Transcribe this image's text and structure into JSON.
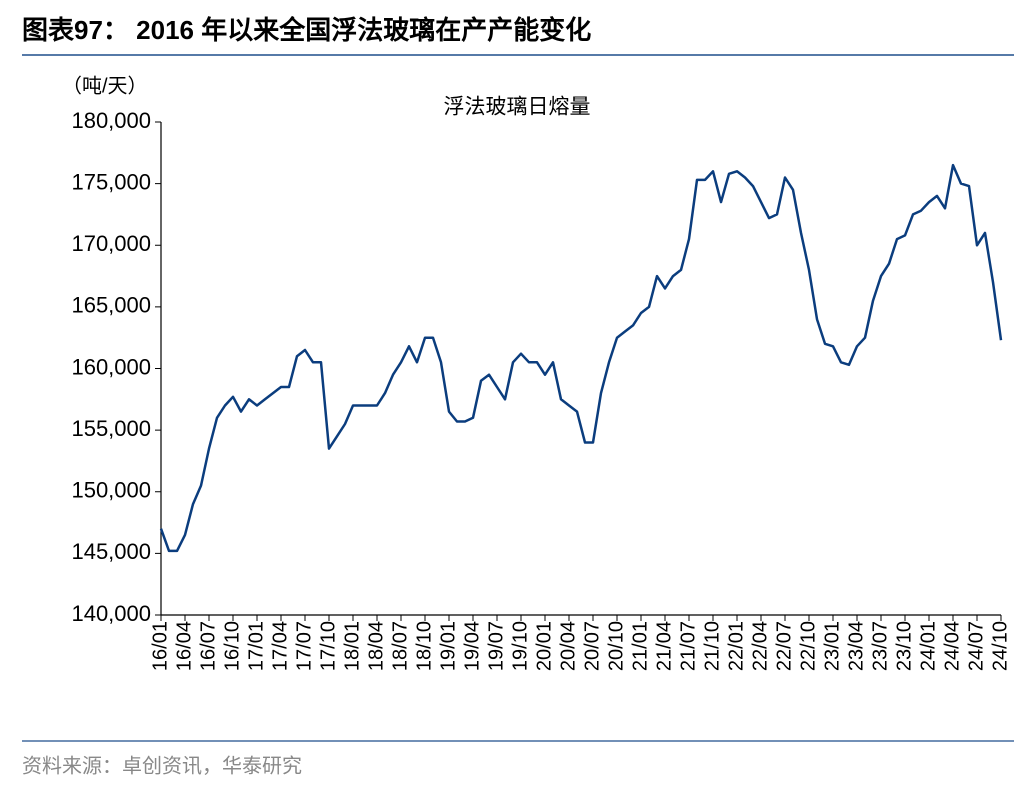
{
  "chart_data": {
    "type": "line",
    "title": "图表97： 2016 年以来全国浮法玻璃在产产能变化",
    "y_axis_label": "（吨/天）",
    "source": "资料来源：卓创资讯，华泰研究",
    "categories": [
      "16/01",
      null,
      null,
      "16/04",
      null,
      null,
      "16/07",
      null,
      null,
      "16/10",
      null,
      null,
      "17/01",
      null,
      null,
      "17/04",
      null,
      null,
      "17/07",
      null,
      null,
      "17/10",
      null,
      null,
      "18/01",
      null,
      null,
      "18/04",
      null,
      null,
      "18/07",
      null,
      null,
      "18/10",
      null,
      null,
      "19/01",
      null,
      null,
      "19/04",
      null,
      null,
      "19/07",
      null,
      null,
      "19/10",
      null,
      null,
      "20/01",
      null,
      null,
      "20/04",
      null,
      null,
      "20/07",
      null,
      null,
      "20/10",
      null,
      null,
      "21/01",
      null,
      null,
      "21/04",
      null,
      null,
      "21/07",
      null,
      null,
      "21/10",
      null,
      null,
      "22/01",
      null,
      null,
      "22/04",
      null,
      null,
      "22/07",
      null,
      null,
      "22/10",
      null,
      null,
      "23/01",
      null,
      null,
      "23/04",
      null,
      null,
      "23/07",
      null,
      null,
      "23/10",
      null,
      null,
      "24/01",
      null,
      null,
      "24/04",
      null,
      null,
      "24/07",
      null,
      null,
      "24/10"
    ],
    "series": [
      {
        "name": "浮法玻璃日熔量",
        "color": "#0b3d7e",
        "values": [
          147000,
          145200,
          145200,
          146500,
          149000,
          150500,
          153500,
          156000,
          157000,
          157700,
          156500,
          157500,
          157000,
          157500,
          158000,
          158500,
          158500,
          161000,
          161500,
          160500,
          160500,
          153500,
          154500,
          155500,
          157000,
          157000,
          157000,
          157000,
          158000,
          159500,
          160500,
          161800,
          160500,
          162500,
          162500,
          160500,
          156500,
          155700,
          155700,
          156000,
          159000,
          159500,
          158500,
          157500,
          160500,
          161200,
          160500,
          160500,
          159500,
          160500,
          157500,
          157000,
          156500,
          154000,
          154000,
          158000,
          160500,
          162500,
          163000,
          163500,
          164500,
          165000,
          167500,
          166500,
          167500,
          168000,
          170500,
          175300,
          175300,
          176000,
          173500,
          175800,
          176000,
          175500,
          174800,
          173500,
          172200,
          172500,
          175500,
          174500,
          171000,
          168000,
          164000,
          162000,
          161800,
          160500,
          160300,
          161800,
          162500,
          165500,
          167500,
          168500,
          170500,
          170800,
          172500,
          172800,
          173500,
          174000,
          173000,
          176500,
          175000,
          174800,
          170000,
          171000,
          167000,
          162300
        ]
      }
    ],
    "ylim": [
      140000,
      180000
    ],
    "yticks": [
      {
        "value": 140000,
        "label": "140,000"
      },
      {
        "value": 145000,
        "label": "145,000"
      },
      {
        "value": 150000,
        "label": "150,000"
      },
      {
        "value": 155000,
        "label": "155,000"
      },
      {
        "value": 160000,
        "label": "160,000"
      },
      {
        "value": 165000,
        "label": "165,000"
      },
      {
        "value": 170000,
        "label": "170,000"
      },
      {
        "value": 175000,
        "label": "175,000"
      },
      {
        "value": 180000,
        "label": "180,000"
      }
    ],
    "grid": false
  }
}
